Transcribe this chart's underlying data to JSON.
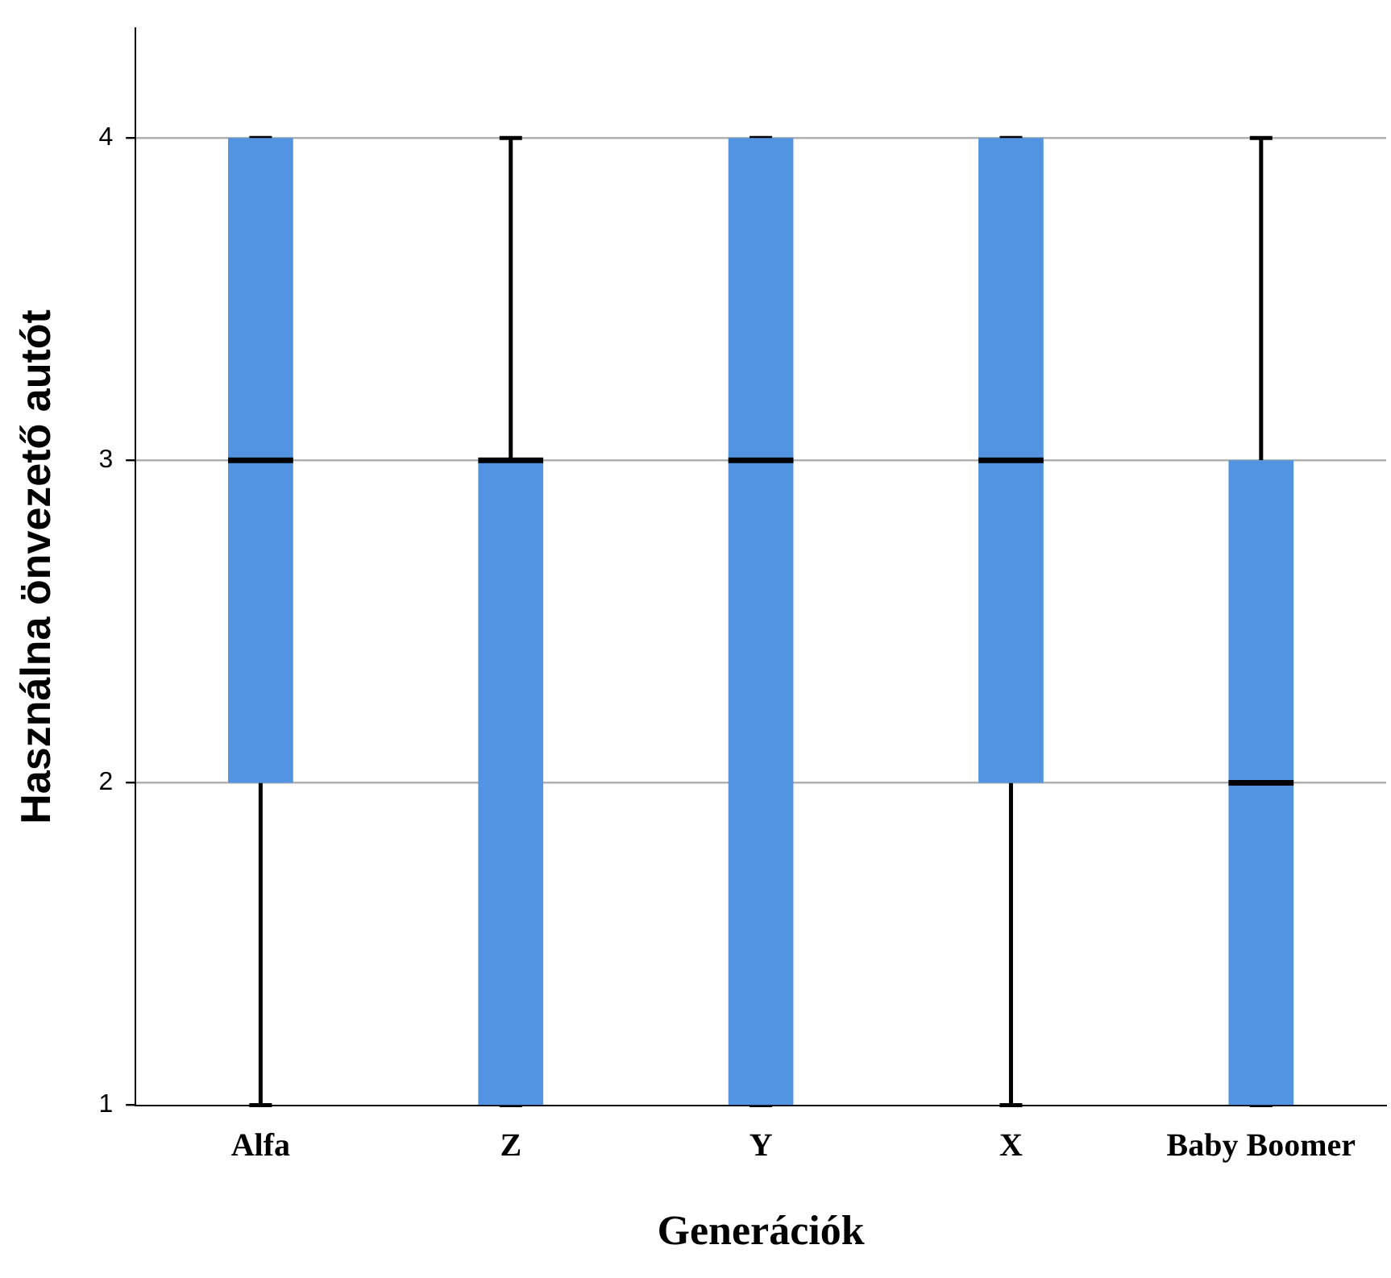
{
  "chart_data": {
    "type": "box",
    "xlabel": "Generációk",
    "ylabel": "Használna önvezető autót",
    "categories": [
      "Alfa",
      "Z",
      "Y",
      "X",
      "Baby Boomer"
    ],
    "boxes": [
      {
        "low": 1,
        "q1": 2,
        "median": 3,
        "q3": 4,
        "high": 4
      },
      {
        "low": 1,
        "q1": 1,
        "median": 3,
        "q3": 3,
        "high": 4
      },
      {
        "low": 1,
        "q1": 1,
        "median": 3,
        "q3": 4,
        "high": 4
      },
      {
        "low": 1,
        "q1": 2,
        "median": 3,
        "q3": 4,
        "high": 4
      },
      {
        "low": 1,
        "q1": 1,
        "median": 2,
        "q3": 3,
        "high": 4
      }
    ],
    "color": "#5294e2",
    "ylim": [
      1,
      4.34
    ],
    "yticks": [
      1,
      2,
      3,
      4
    ],
    "grid": "y",
    "legend": false
  }
}
